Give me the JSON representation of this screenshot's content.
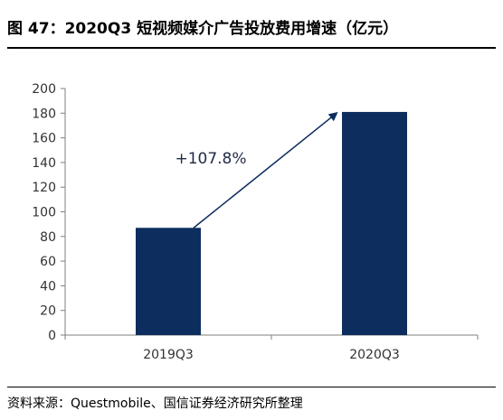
{
  "figure": {
    "title": "图 47：2020Q3 短视频媒介广告投放费用增速（亿元）",
    "source": "资料来源：Questmobile、国信证券经济研究所整理"
  },
  "colors": {
    "bar": "#0d2d5f",
    "axis": "#7f7f7f",
    "text": "#000000"
  },
  "chart_data": {
    "type": "bar",
    "categories": [
      "2019Q3",
      "2020Q3"
    ],
    "values": [
      87,
      181
    ],
    "ylim": [
      0,
      200
    ],
    "yticks": [
      0,
      20,
      40,
      60,
      80,
      100,
      120,
      140,
      160,
      180,
      200
    ],
    "grid": false,
    "annotation": {
      "text": "+107.8%",
      "arrow_from": "2019Q3",
      "arrow_to": "2020Q3"
    }
  }
}
